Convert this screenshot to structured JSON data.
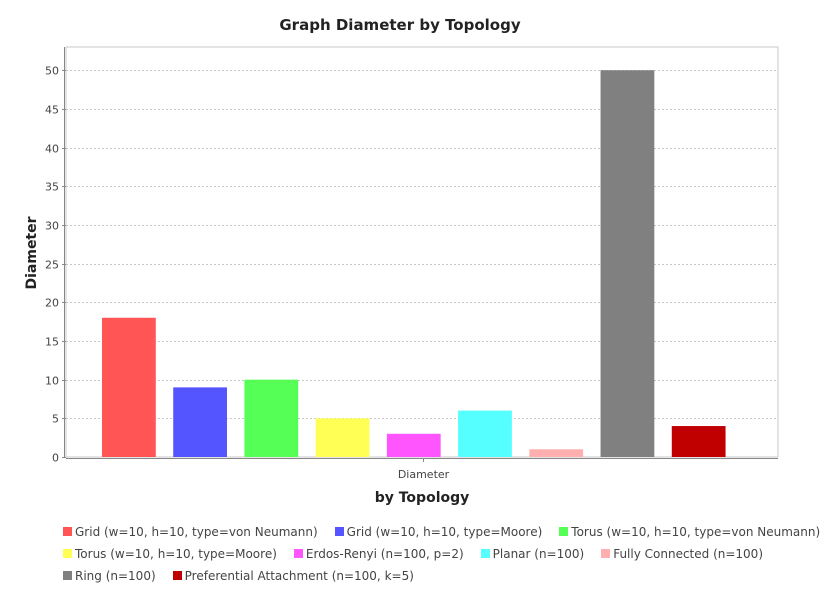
{
  "chart_data": {
    "type": "bar",
    "title": "Graph Diameter by Topology",
    "xlabel": "by Topology",
    "ylabel": "Diameter",
    "categories": [
      "Diameter"
    ],
    "ylim": [
      0,
      53
    ],
    "yticks": [
      0,
      5,
      10,
      15,
      20,
      25,
      30,
      35,
      40,
      45,
      50
    ],
    "grid": true,
    "legend_position": "bottom",
    "series": [
      {
        "name": "Grid (w=10, h=10, type=von Neumann)",
        "values": [
          18
        ],
        "color": "#ff5555"
      },
      {
        "name": "Grid (w=10, h=10, type=Moore)",
        "values": [
          9
        ],
        "color": "#5555ff"
      },
      {
        "name": "Torus (w=10, h=10, type=von Neumann)",
        "values": [
          10
        ],
        "color": "#55ff55"
      },
      {
        "name": "Torus (w=10, h=10, type=Moore)",
        "values": [
          5
        ],
        "color": "#ffff55"
      },
      {
        "name": "Erdos-Renyi (n=100, p=2)",
        "values": [
          3
        ],
        "color": "#ff55ff"
      },
      {
        "name": "Planar (n=100)",
        "values": [
          6
        ],
        "color": "#55ffff"
      },
      {
        "name": "Fully Connected (n=100)",
        "values": [
          1
        ],
        "color": "#ffafaf"
      },
      {
        "name": "Ring (n=100)",
        "values": [
          50
        ],
        "color": "#808080"
      },
      {
        "name": "Preferential Attachment (n=100, k=5)",
        "values": [
          4
        ],
        "color": "#c00000"
      }
    ]
  }
}
